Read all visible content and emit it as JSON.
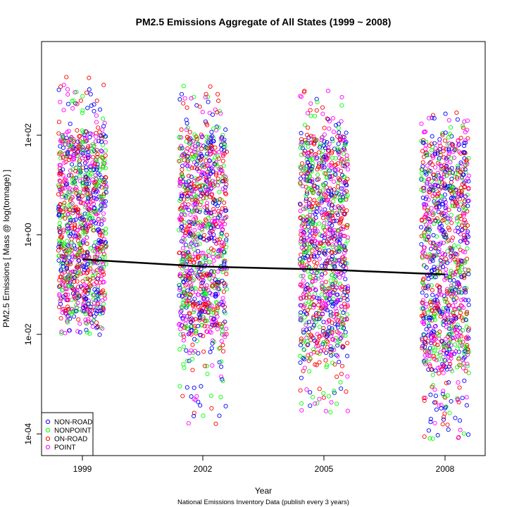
{
  "chart_data": {
    "type": "scatter",
    "title": "PM2.5 Emissions Aggregate of All States (1999 ~ 2008)",
    "xlabel": "Year",
    "ylabel": "PM2.5 Emissions [ Mass @ log(tonnage) ]",
    "subtitle": "National Emissions Inventory Data (publish every 3 years)",
    "y_scale": "log",
    "ylim": [
      5e-05,
      3000
    ],
    "categories": [
      "1999",
      "2002",
      "2005",
      "2008"
    ],
    "y_ticks": [
      {
        "value": 0.0001,
        "label": "1e-04"
      },
      {
        "value": 0.01,
        "label": "1e-02"
      },
      {
        "value": 1,
        "label": "1e+00"
      },
      {
        "value": 100,
        "label": "1e+02"
      }
    ],
    "grid": false,
    "legend_position": "bottom-left",
    "series": [
      {
        "name": "NON-ROAD",
        "color": "#0000ff"
      },
      {
        "name": "NONPOINT",
        "color": "#00ff00"
      },
      {
        "name": "ON-ROAD",
        "color": "#ff0000"
      },
      {
        "name": "POINT",
        "color": "#ff00ff"
      }
    ],
    "clusters": [
      {
        "year": "1999",
        "dense_min": 0.03,
        "dense_max": 100,
        "tail_min": 0.009,
        "tail_max": 1600
      },
      {
        "year": "2002",
        "dense_min": 0.01,
        "dense_max": 90,
        "tail_min": 0.00015,
        "tail_max": 1000
      },
      {
        "year": "2005",
        "dense_min": 0.005,
        "dense_max": 80,
        "tail_min": 0.00025,
        "tail_max": 800
      },
      {
        "year": "2008",
        "dense_min": 0.002,
        "dense_max": 60,
        "tail_min": 8e-05,
        "tail_max": 300
      }
    ],
    "trend_line": {
      "color": "#000000",
      "points": [
        {
          "x": "1999",
          "y": 0.32
        },
        {
          "x": "2002",
          "y": 0.23
        },
        {
          "x": "2005",
          "y": 0.2
        },
        {
          "x": "2008",
          "y": 0.16
        }
      ]
    }
  }
}
